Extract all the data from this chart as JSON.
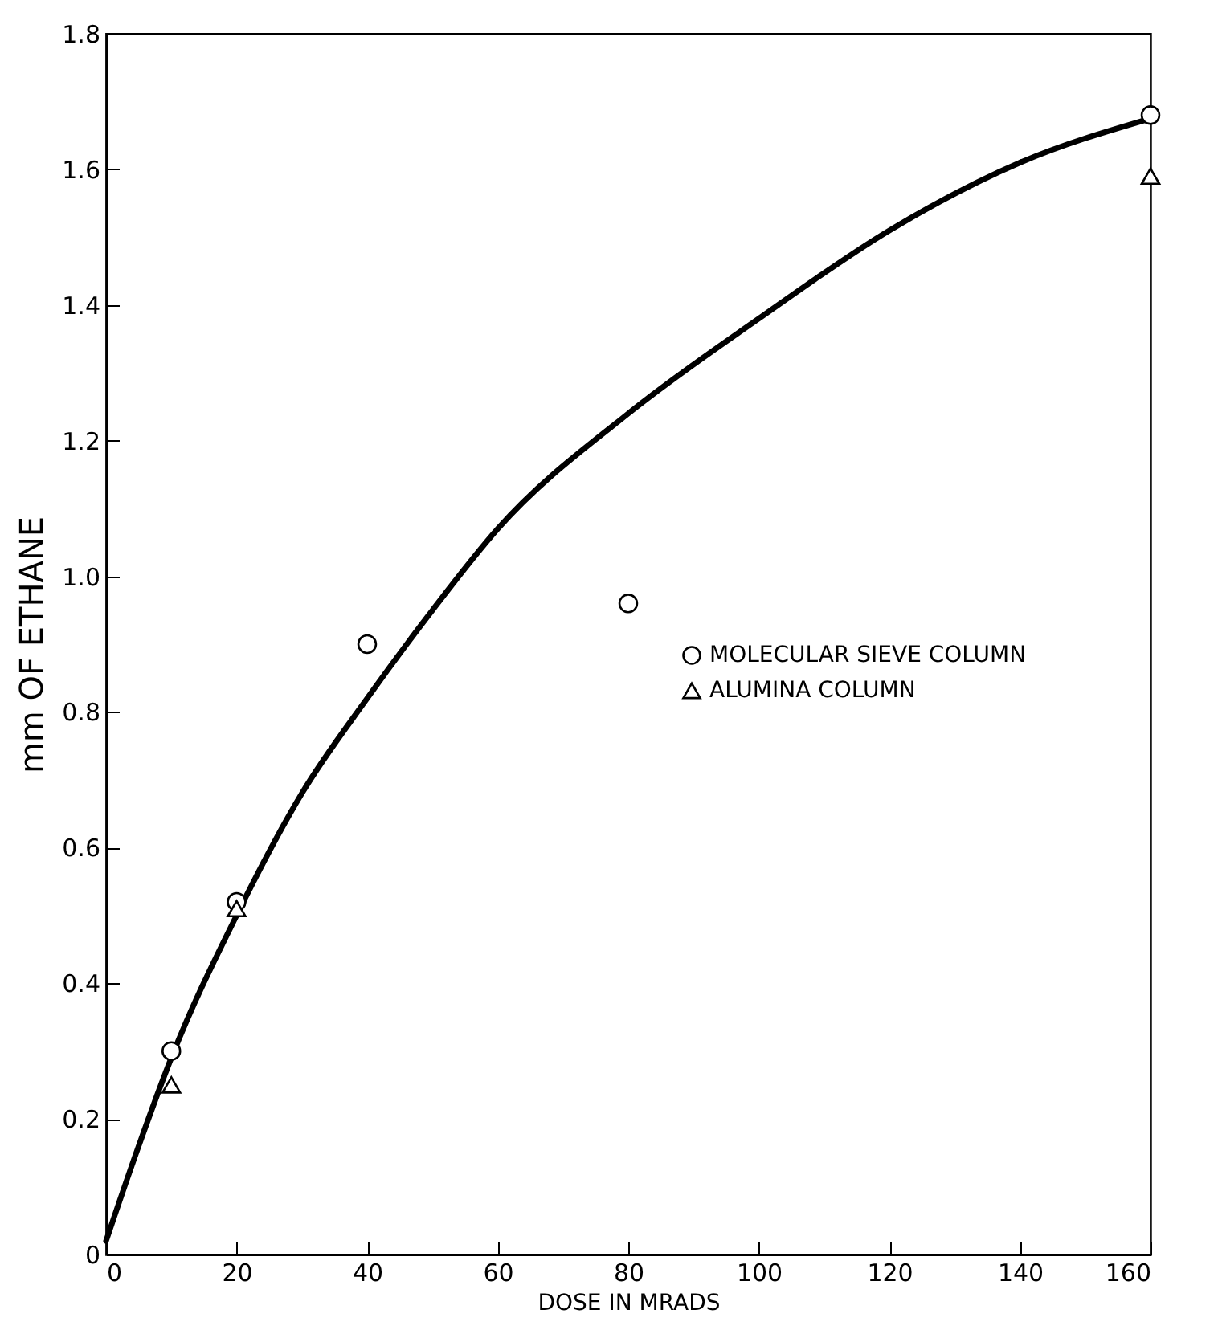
{
  "chart_data": {
    "type": "scatter",
    "xlabel": "DOSE IN MRADS",
    "ylabel": "mm OF ETHANE",
    "xlim": [
      0,
      160
    ],
    "ylim": [
      0,
      1.8
    ],
    "xticks": [
      0,
      20,
      40,
      60,
      80,
      100,
      120,
      140,
      160
    ],
    "yticks": [
      0,
      0.2,
      0.4,
      0.6,
      0.8,
      {
        "value": 1,
        "label": "1.0"
      },
      1.2,
      1.4,
      1.6,
      1.8
    ],
    "grid": false,
    "legend": "right",
    "series": [
      {
        "type": "line",
        "color": "#000000",
        "marker": "none",
        "line_style": "solid",
        "x": [
          0,
          5,
          10,
          20,
          30,
          40,
          50,
          60,
          80,
          100,
          120,
          140,
          160
        ],
        "values": [
          0.02,
          0.16,
          0.29,
          0.5,
          0.68,
          0.82,
          0.95,
          1.07,
          1.24,
          1.38,
          1.51,
          1.61,
          1.675
        ]
      },
      {
        "name": "MOLECULAR SIEVE COLUMN",
        "color": "#000000",
        "marker": "circle",
        "x": [
          10,
          20,
          40,
          80,
          160
        ],
        "values": [
          0.3,
          0.52,
          0.9,
          0.96,
          1.68
        ]
      },
      {
        "name": "ALUMINA COLUMN",
        "color": "#000000",
        "marker": "triangle",
        "x": [
          10,
          20,
          160
        ],
        "values": [
          0.25,
          0.51,
          1.59
        ]
      }
    ]
  }
}
